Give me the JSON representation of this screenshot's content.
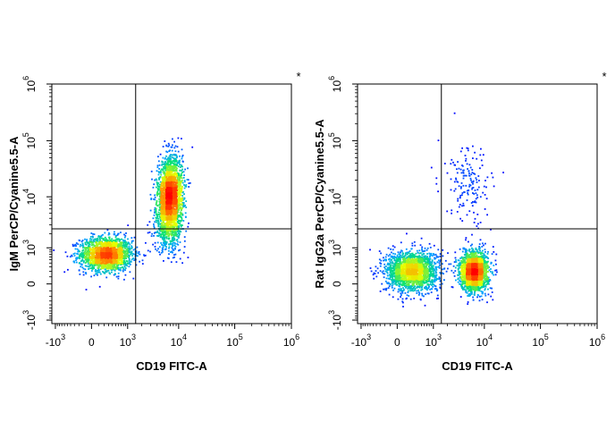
{
  "chart_data": [
    {
      "type": "scatter",
      "subtype": "flow-cytometry-density-dot-plot",
      "title": "",
      "xlabel": "CD19 FITC-A",
      "ylabel": "IgM PerCP/Cyanine5.5-A",
      "x_scale": "biexponential",
      "y_scale": "biexponential",
      "x_ticks": [
        {
          "value": -1000,
          "base": "-10",
          "exp": "3"
        },
        {
          "value": 0,
          "base": "0",
          "exp": ""
        },
        {
          "value": 1000,
          "base": "10",
          "exp": "3"
        },
        {
          "value": 10000,
          "base": "10",
          "exp": "4"
        },
        {
          "value": 100000,
          "base": "10",
          "exp": "5"
        },
        {
          "value": 1000000,
          "base": "10",
          "exp": "6"
        }
      ],
      "y_ticks": [
        {
          "value": -1000,
          "base": "-10",
          "exp": "3"
        },
        {
          "value": 0,
          "base": "0",
          "exp": ""
        },
        {
          "value": 1000,
          "base": "10",
          "exp": "3"
        },
        {
          "value": 10000,
          "base": "10",
          "exp": "4"
        },
        {
          "value": 100000,
          "base": "10",
          "exp": "5"
        },
        {
          "value": 1000000,
          "base": "10",
          "exp": "6"
        }
      ],
      "quadrant_gate": {
        "x": 1500,
        "y": 2500
      },
      "corner_mark": "*",
      "grid": false,
      "populations": [
        {
          "name": "",
          "center": [
            250,
            700
          ],
          "spread": [
            0.34,
            0.22
          ],
          "events": 1800,
          "density": "high"
        },
        {
          "name": "",
          "center": [
            7000,
            10000
          ],
          "spread": [
            0.16,
            0.5
          ],
          "events": 2300,
          "density": "high",
          "tilt": 0.35
        },
        {
          "name": "",
          "center": [
            7000,
            2500
          ],
          "spread": [
            0.2,
            0.3
          ],
          "events": 300,
          "density": "low"
        }
      ],
      "color_scale": [
        "#0000ff",
        "#00a5ff",
        "#00e07a",
        "#e6ff00",
        "#ff8c00",
        "#ff0000"
      ]
    },
    {
      "type": "scatter",
      "subtype": "flow-cytometry-density-dot-plot",
      "title": "",
      "xlabel": "CD19 FITC-A",
      "ylabel": "Rat IgG2a PerCP/Cyanine5.5-A",
      "x_scale": "biexponential",
      "y_scale": "biexponential",
      "x_ticks": [
        {
          "value": -1000,
          "base": "-10",
          "exp": "3"
        },
        {
          "value": 0,
          "base": "0",
          "exp": ""
        },
        {
          "value": 1000,
          "base": "10",
          "exp": "3"
        },
        {
          "value": 10000,
          "base": "10",
          "exp": "4"
        },
        {
          "value": 100000,
          "base": "10",
          "exp": "5"
        },
        {
          "value": 1000000,
          "base": "10",
          "exp": "6"
        }
      ],
      "y_ticks": [
        {
          "value": -1000,
          "base": "-10",
          "exp": "3"
        },
        {
          "value": 0,
          "base": "0",
          "exp": ""
        },
        {
          "value": 1000,
          "base": "10",
          "exp": "3"
        },
        {
          "value": 10000,
          "base": "10",
          "exp": "4"
        },
        {
          "value": 100000,
          "base": "10",
          "exp": "5"
        },
        {
          "value": 1000000,
          "base": "10",
          "exp": "6"
        }
      ],
      "quadrant_gate": {
        "x": 1500,
        "y": 2500
      },
      "corner_mark": "*",
      "grid": false,
      "populations": [
        {
          "name": "",
          "center": [
            250,
            200
          ],
          "spread": [
            0.34,
            0.26
          ],
          "events": 1900,
          "density": "high"
        },
        {
          "name": "",
          "center": [
            6500,
            200
          ],
          "spread": [
            0.18,
            0.26
          ],
          "events": 1900,
          "density": "high"
        },
        {
          "name": "",
          "center": [
            5000,
            15000
          ],
          "spread": [
            0.3,
            0.5
          ],
          "events": 160,
          "density": "low"
        }
      ],
      "color_scale": [
        "#0000ff",
        "#00a5ff",
        "#00e07a",
        "#e6ff00",
        "#ff8c00",
        "#ff0000"
      ]
    }
  ]
}
